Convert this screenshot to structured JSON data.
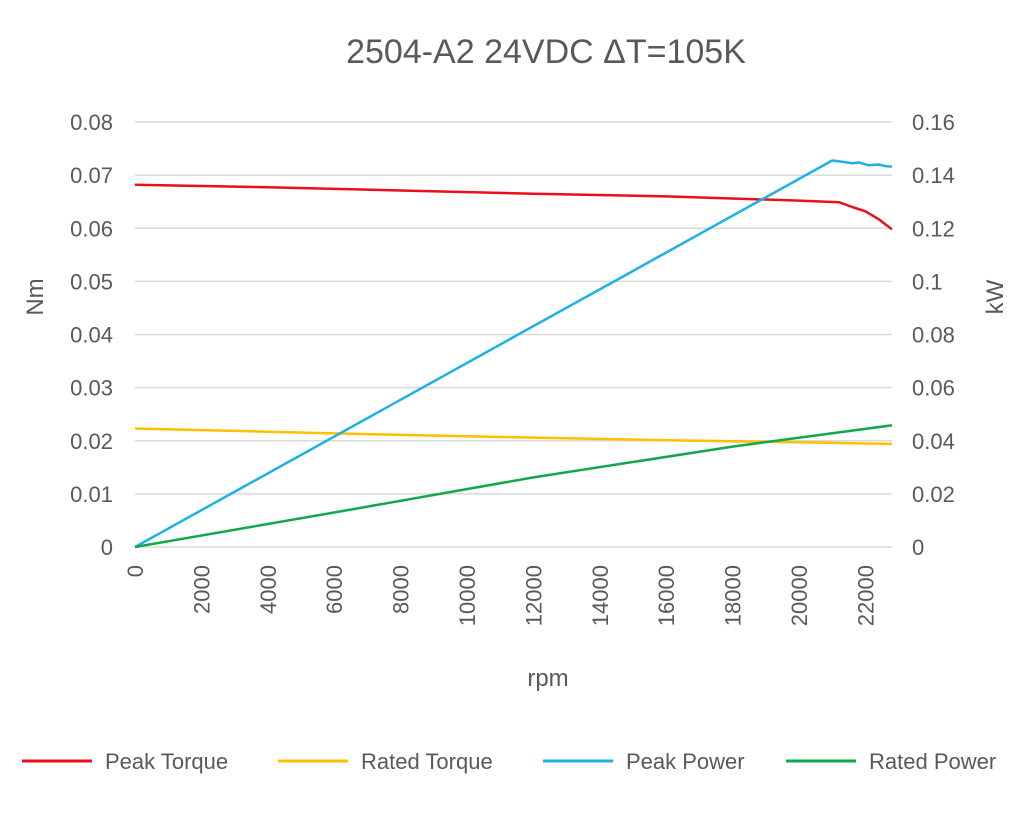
{
  "chart_data": {
    "type": "line",
    "title": "2504-A2 24VDC ΔT=105K",
    "xlabel": "rpm",
    "ylabel_left": "Nm",
    "ylabel_right": "kW",
    "xlim": [
      0,
      22800
    ],
    "xticks": [
      "0",
      "2000",
      "4000",
      "6000",
      "8000",
      "10000",
      "12000",
      "14000",
      "16000",
      "18000",
      "20000",
      "22000"
    ],
    "ylim_left": [
      0,
      0.08
    ],
    "yticks_left": [
      "0",
      "0.01",
      "0.02",
      "0.03",
      "0.04",
      "0.05",
      "0.06",
      "0.07",
      "0.08"
    ],
    "ylim_right": [
      0,
      0.16
    ],
    "yticks_right": [
      "0",
      "0.02",
      "0.04",
      "0.06",
      "0.08",
      "0.1",
      "0.12",
      "0.14",
      "0.16"
    ],
    "grid": true,
    "legend_position": "bottom",
    "series": [
      {
        "name": "Peak Torque",
        "axis": "left",
        "color": "#e8101b",
        "points": [
          [
            0,
            0.0682
          ],
          [
            4000,
            0.0677
          ],
          [
            8000,
            0.0671
          ],
          [
            12000,
            0.0665
          ],
          [
            16000,
            0.066
          ],
          [
            20000,
            0.0652
          ],
          [
            21200,
            0.0649
          ],
          [
            21600,
            0.064
          ],
          [
            22000,
            0.0632
          ],
          [
            22400,
            0.0617
          ],
          [
            22800,
            0.0598
          ]
        ]
      },
      {
        "name": "Rated Torque",
        "axis": "left",
        "color": "#ffc000",
        "points": [
          [
            0,
            0.0223
          ],
          [
            4000,
            0.0217
          ],
          [
            8000,
            0.0211
          ],
          [
            12000,
            0.0206
          ],
          [
            16000,
            0.0201
          ],
          [
            20000,
            0.0197
          ],
          [
            22800,
            0.0194
          ]
        ]
      },
      {
        "name": "Peak Power",
        "axis": "right",
        "color": "#1fb1e6",
        "points": [
          [
            0,
            0
          ],
          [
            21000,
            0.1455
          ],
          [
            21300,
            0.145
          ],
          [
            21600,
            0.1445
          ],
          [
            21800,
            0.1448
          ],
          [
            22100,
            0.1437
          ],
          [
            22400,
            0.144
          ],
          [
            22600,
            0.1434
          ],
          [
            22800,
            0.1432
          ]
        ]
      },
      {
        "name": "Rated Power",
        "axis": "right",
        "color": "#11a84b",
        "points": [
          [
            0,
            0
          ],
          [
            6000,
            0.013
          ],
          [
            12000,
            0.0262
          ],
          [
            18000,
            0.0378
          ],
          [
            22800,
            0.0458
          ]
        ]
      }
    ]
  }
}
